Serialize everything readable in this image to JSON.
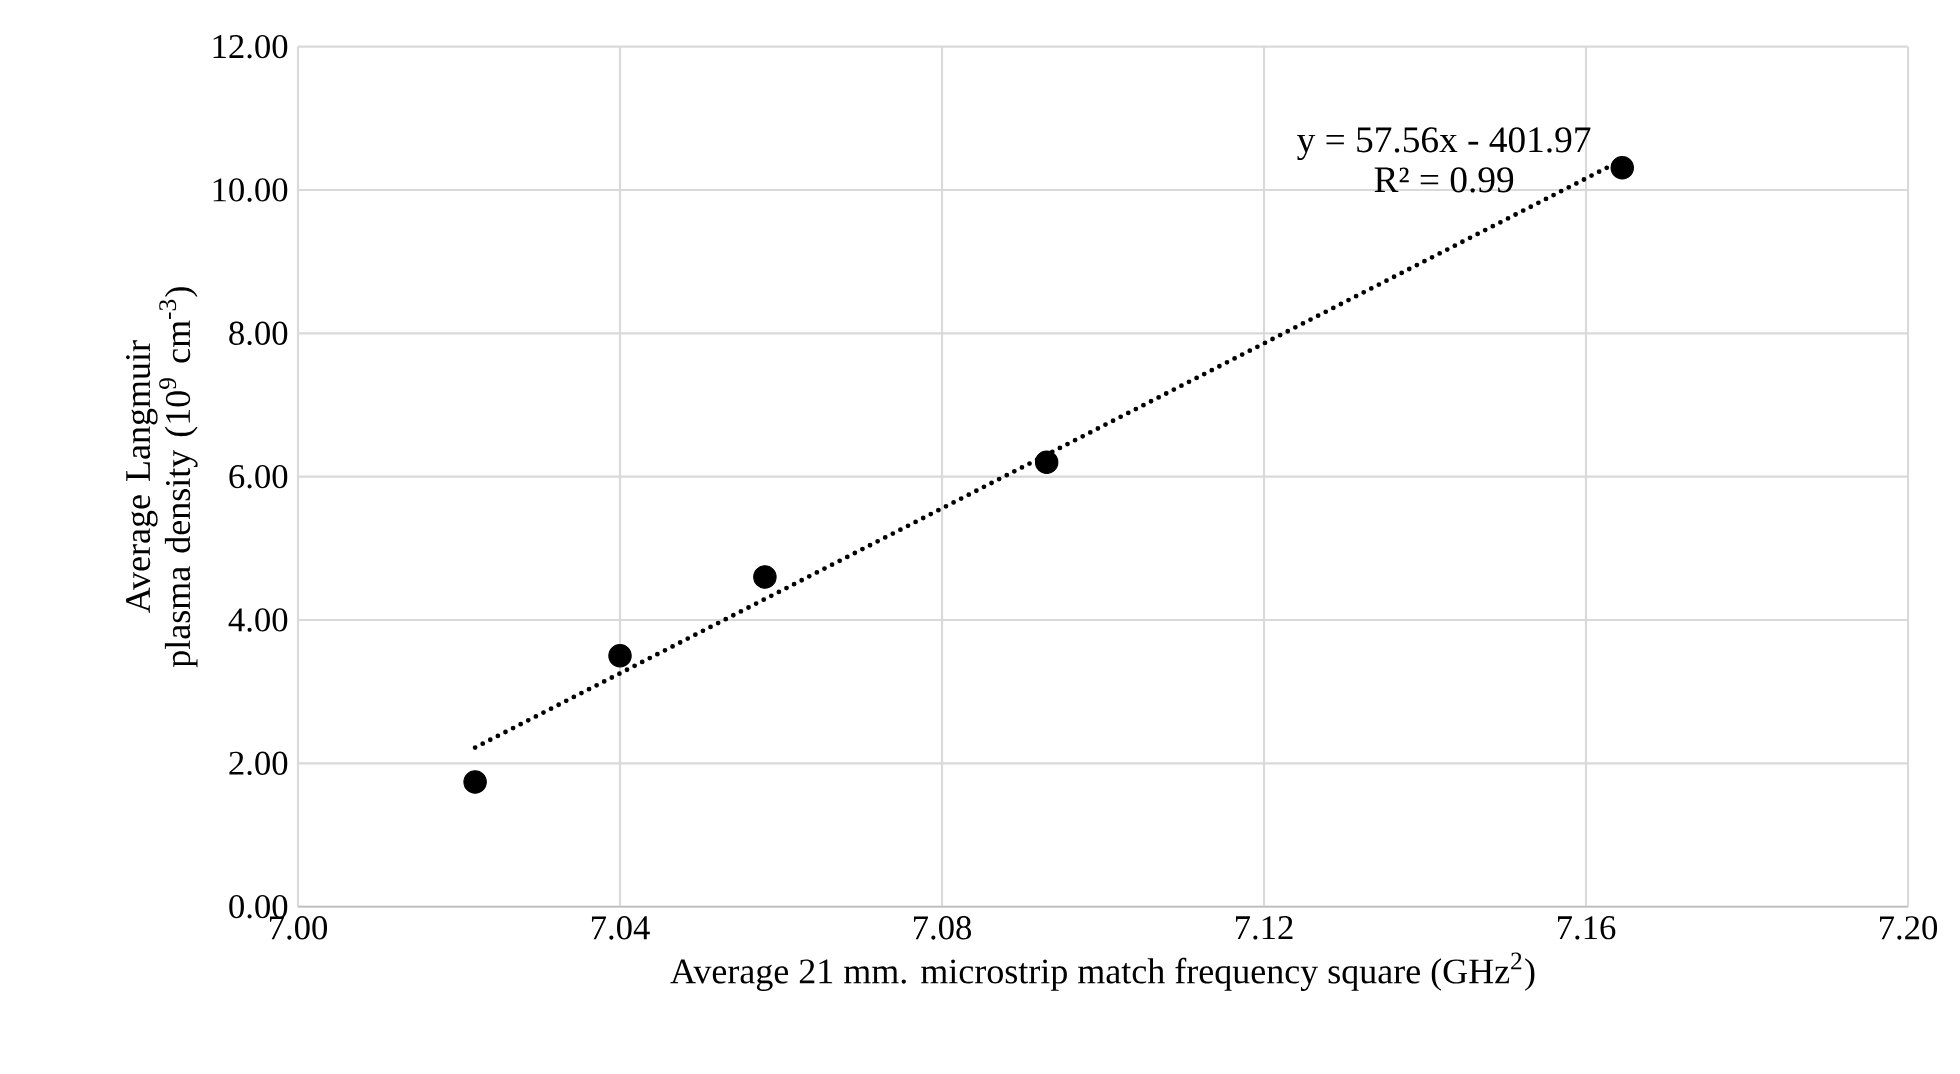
{
  "chart_data": {
    "type": "scatter",
    "xlabel": "Average 21 mm. microstrip match frequency square (GHz$^{2}$)",
    "ylabel": "Average Langmuir plasma density (10$^{9}$ cm$^{-3}$)",
    "x": [
      7.022,
      7.04,
      7.058,
      7.093,
      7.1645
    ],
    "series": [
      {
        "color": "#000000",
        "marker": "circle",
        "values": [
          1.74,
          3.5,
          4.6,
          6.2,
          10.31
        ]
      },
      {
        "type": "line",
        "color": "#000000",
        "line_style": "dotted",
        "marker": "none",
        "x": [
          7.022,
          7.1645
        ],
        "values": [
          2.22,
          10.42
        ]
      }
    ],
    "annotations": [
      "y = 57.56x - 401.97",
      "R² = 0.99"
    ],
    "xlim": [
      7.0,
      7.2
    ],
    "xticks": [
      {
        "value": 7.0,
        "label": "7.00"
      },
      {
        "value": 7.04,
        "label": "7.04"
      },
      {
        "value": 7.08,
        "label": "7.08"
      },
      {
        "value": 7.12,
        "label": "7.12"
      },
      {
        "value": 7.16,
        "label": "7.16"
      },
      {
        "value": 7.2,
        "label": "7.20"
      }
    ],
    "ylim": [
      0,
      12
    ],
    "yticks": [
      {
        "value": 0,
        "label": "0.00"
      },
      {
        "value": 2,
        "label": "2.00"
      },
      {
        "value": 4,
        "label": "4.00"
      },
      {
        "value": 6,
        "label": "6.00"
      },
      {
        "value": 8,
        "label": "8.00"
      },
      {
        "value": 10,
        "label": "10.00"
      },
      {
        "value": 12,
        "label": "12.00"
      }
    ],
    "grid": true
  }
}
